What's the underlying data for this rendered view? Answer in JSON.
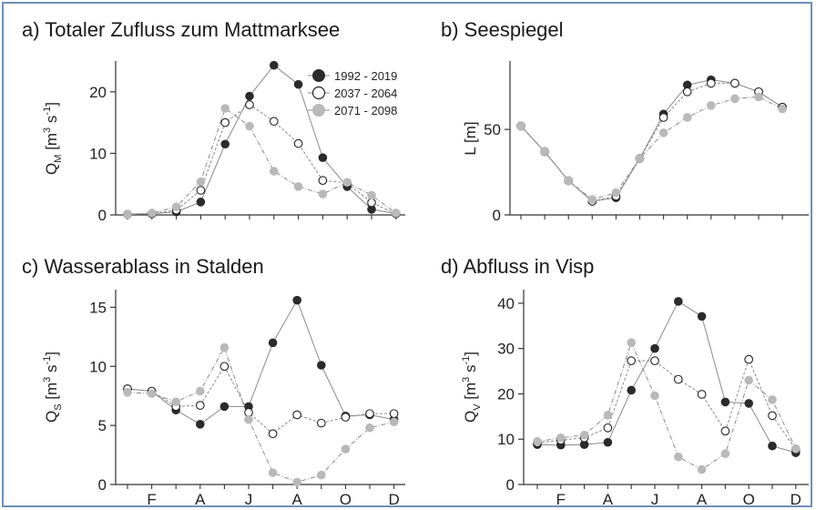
{
  "colors": {
    "dark": "#2b2b2b",
    "open_fill": "#ffffff",
    "open_stroke": "#222222",
    "light": "#b9b9b9",
    "line": "#8a8a8a",
    "frame": "#6f8fb8"
  },
  "x_tick_labels": [
    "F",
    "A",
    "J",
    "A",
    "O",
    "D"
  ],
  "chart_data": [
    {
      "id": "a",
      "type": "line",
      "title": "a) Totaler Zufluss zum Mattmarksee",
      "ylabel_main": "Q",
      "ylabel_sub": "M",
      "ylabel_units": " [m",
      "ylabel_exp": "3",
      "ylabel_tail": " s",
      "ylabel_exp2": "-1",
      "ylabel_close": "]",
      "ylim": [
        0,
        25
      ],
      "yticks": [
        0,
        10,
        20
      ],
      "x": [
        1,
        2,
        3,
        4,
        5,
        6,
        7,
        8,
        9,
        10,
        11,
        12
      ],
      "series": [
        {
          "name": "1992 - 2019",
          "style": "dark",
          "values": [
            0.1,
            0.2,
            0.5,
            2.1,
            11.5,
            19.3,
            24.3,
            21.2,
            9.3,
            4.6,
            0.9,
            0.2
          ]
        },
        {
          "name": "2037 - 2064",
          "style": "open",
          "values": [
            0.1,
            0.2,
            0.8,
            4.0,
            15.0,
            17.9,
            15.2,
            11.6,
            5.6,
            5.2,
            2.0,
            0.2
          ]
        },
        {
          "name": "2071 - 2098",
          "style": "light",
          "values": [
            0.1,
            0.3,
            1.3,
            5.4,
            17.3,
            14.4,
            7.1,
            4.6,
            3.4,
            5.3,
            3.2,
            0.3
          ]
        }
      ],
      "legend_position": "top-right"
    },
    {
      "id": "b",
      "type": "line",
      "title": "b) Seespiegel",
      "ylabel_main": "L [m]",
      "ylim": [
        0,
        90
      ],
      "yticks": [
        0,
        50
      ],
      "x": [
        1,
        2,
        3,
        4,
        5,
        6,
        7,
        8,
        9,
        10,
        11,
        12
      ],
      "series": [
        {
          "name": "1992 - 2019",
          "style": "dark",
          "values": [
            52,
            37,
            20,
            8,
            10,
            33,
            59,
            76,
            79,
            77,
            72,
            63
          ]
        },
        {
          "name": "2037 - 2064",
          "style": "open",
          "values": [
            52,
            37,
            20,
            8,
            11,
            33,
            57,
            72,
            77,
            77,
            72,
            63
          ]
        },
        {
          "name": "2071 - 2098",
          "style": "light",
          "values": [
            52,
            37,
            20,
            9,
            13,
            33,
            48,
            57,
            64,
            68,
            69,
            62
          ]
        }
      ]
    },
    {
      "id": "c",
      "type": "line",
      "title": "c) Wasserablass in Stalden",
      "ylabel_main": "Q",
      "ylabel_sub": "S",
      "ylabel_units": " [m",
      "ylabel_exp": "3",
      "ylabel_tail": " s",
      "ylabel_exp2": "-1",
      "ylabel_close": "]",
      "ylim": [
        0,
        16.5
      ],
      "yticks": [
        0,
        5,
        10,
        15
      ],
      "x": [
        1,
        2,
        3,
        4,
        5,
        6,
        7,
        8,
        9,
        10,
        11,
        12
      ],
      "series": [
        {
          "name": "1992 - 2019",
          "style": "dark",
          "values": [
            8.1,
            7.9,
            6.3,
            5.1,
            6.6,
            6.6,
            12.0,
            15.6,
            10.1,
            5.8,
            5.9,
            5.5
          ]
        },
        {
          "name": "2037 - 2064",
          "style": "open",
          "values": [
            8.1,
            7.9,
            6.6,
            6.7,
            10.0,
            6.1,
            4.3,
            5.9,
            5.2,
            5.7,
            6.0,
            6.0
          ]
        },
        {
          "name": "2071 - 2098",
          "style": "light",
          "values": [
            7.8,
            7.7,
            7.0,
            7.9,
            11.6,
            5.5,
            1.0,
            0.2,
            0.8,
            3.0,
            4.8,
            5.3
          ]
        }
      ]
    },
    {
      "id": "d",
      "type": "line",
      "title": "d) Abfluss in Visp",
      "ylabel_main": "Q",
      "ylabel_sub": "V",
      "ylabel_units": " [m",
      "ylabel_exp": "3",
      "ylabel_tail": " s",
      "ylabel_exp2": "-1",
      "ylabel_close": "]",
      "ylim": [
        0,
        43
      ],
      "yticks": [
        0,
        10,
        20,
        30,
        40
      ],
      "x": [
        1,
        2,
        3,
        4,
        5,
        6,
        7,
        8,
        9,
        10,
        11,
        12
      ],
      "series": [
        {
          "name": "1992 - 2019",
          "style": "dark",
          "values": [
            8.8,
            8.7,
            8.8,
            9.3,
            20.8,
            30.0,
            40.4,
            37.1,
            18.2,
            17.9,
            8.5,
            7.0
          ]
        },
        {
          "name": "2037 - 2064",
          "style": "open",
          "values": [
            9.2,
            9.8,
            10.3,
            12.5,
            27.3,
            27.3,
            23.2,
            19.9,
            11.8,
            27.6,
            15.2,
            7.7
          ]
        },
        {
          "name": "2071 - 2098",
          "style": "light",
          "values": [
            9.5,
            10.3,
            10.9,
            15.3,
            31.3,
            19.6,
            6.1,
            3.3,
            6.8,
            23.0,
            18.7,
            7.9
          ]
        }
      ]
    }
  ]
}
